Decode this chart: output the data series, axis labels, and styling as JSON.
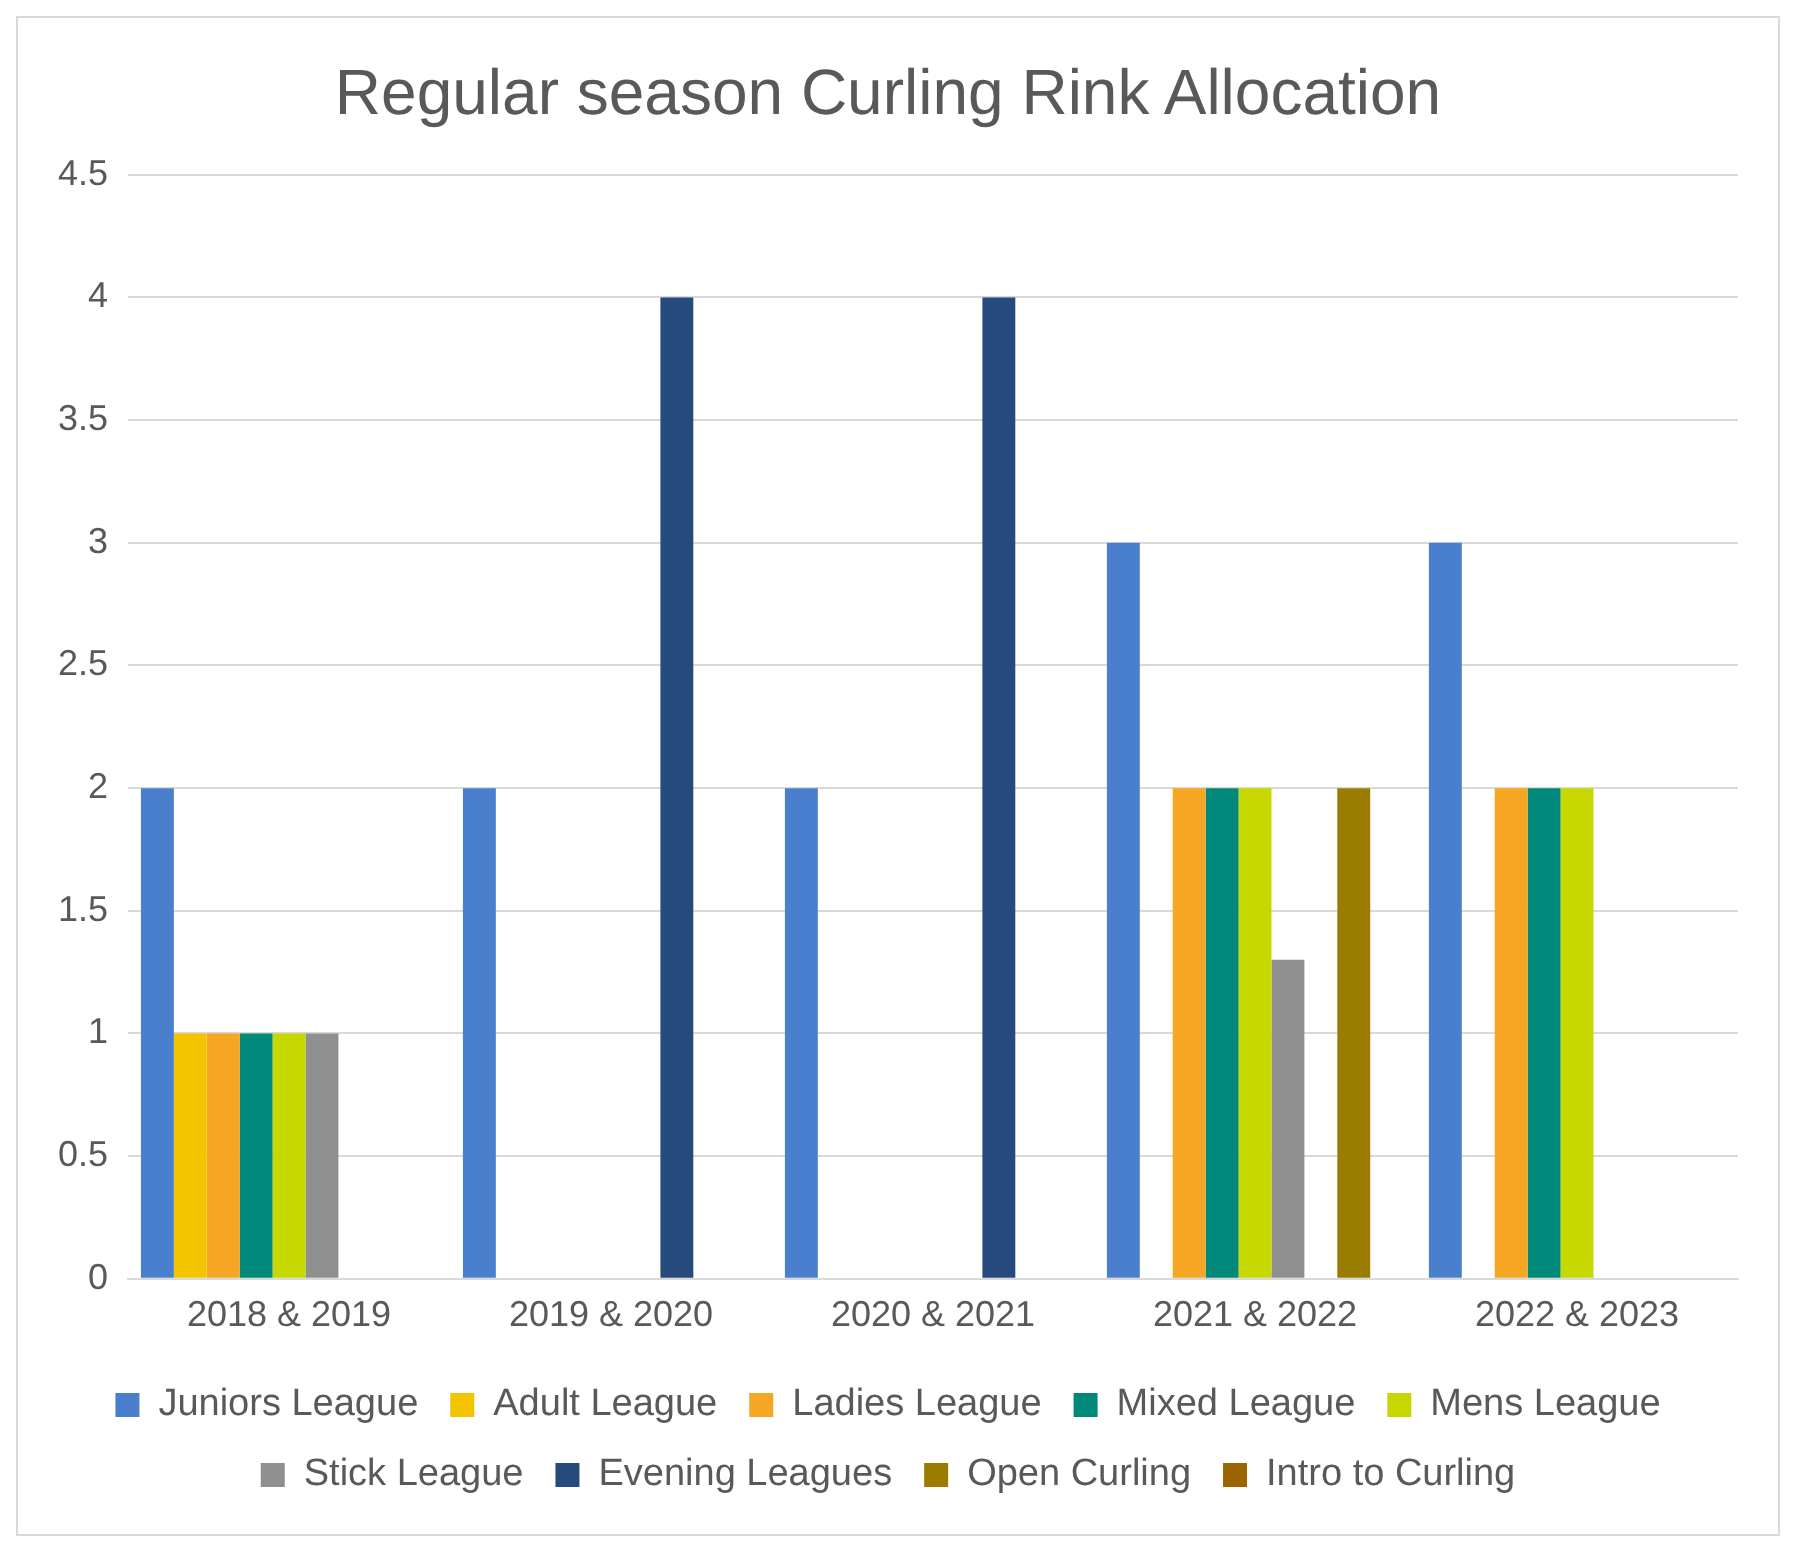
{
  "chart_data": {
    "type": "bar",
    "title": "Regular season Curling Rink Allocation",
    "categories": [
      "2018 & 2019",
      "2019 & 2020",
      "2020 & 2021",
      "2021 & 2022",
      "2022 & 2023"
    ],
    "series": [
      {
        "name": "Juniors League",
        "color": "#4a7fce",
        "values": [
          2,
          2,
          2,
          3,
          3
        ]
      },
      {
        "name": "Adult League",
        "color": "#f5c400",
        "values": [
          1,
          0,
          0,
          0,
          0
        ]
      },
      {
        "name": "Ladies League",
        "color": "#f5a623",
        "values": [
          1,
          0,
          0,
          2,
          2
        ]
      },
      {
        "name": "Mixed League",
        "color": "#00897b",
        "values": [
          1,
          0,
          0,
          2,
          2
        ]
      },
      {
        "name": "Mens League",
        "color": "#c6d800",
        "values": [
          1,
          0,
          0,
          2,
          2
        ]
      },
      {
        "name": "Stick League",
        "color": "#8f8f8f",
        "values": [
          1,
          0,
          0,
          1.3,
          0
        ]
      },
      {
        "name": "Evening Leagues",
        "color": "#264a7c",
        "values": [
          0,
          4,
          4,
          0,
          0
        ]
      },
      {
        "name": "Open Curling",
        "color": "#9a7d00",
        "values": [
          0,
          0,
          0,
          2,
          0
        ]
      },
      {
        "name": "Intro to Curling",
        "color": "#9c6500",
        "values": [
          0,
          0,
          0,
          0,
          0
        ]
      }
    ],
    "ylim": [
      0,
      4.5
    ],
    "yticks": [
      0,
      0.5,
      1,
      1.5,
      2,
      2.5,
      3,
      3.5,
      4,
      4.5
    ],
    "grid": "y",
    "legend": "bottom"
  }
}
